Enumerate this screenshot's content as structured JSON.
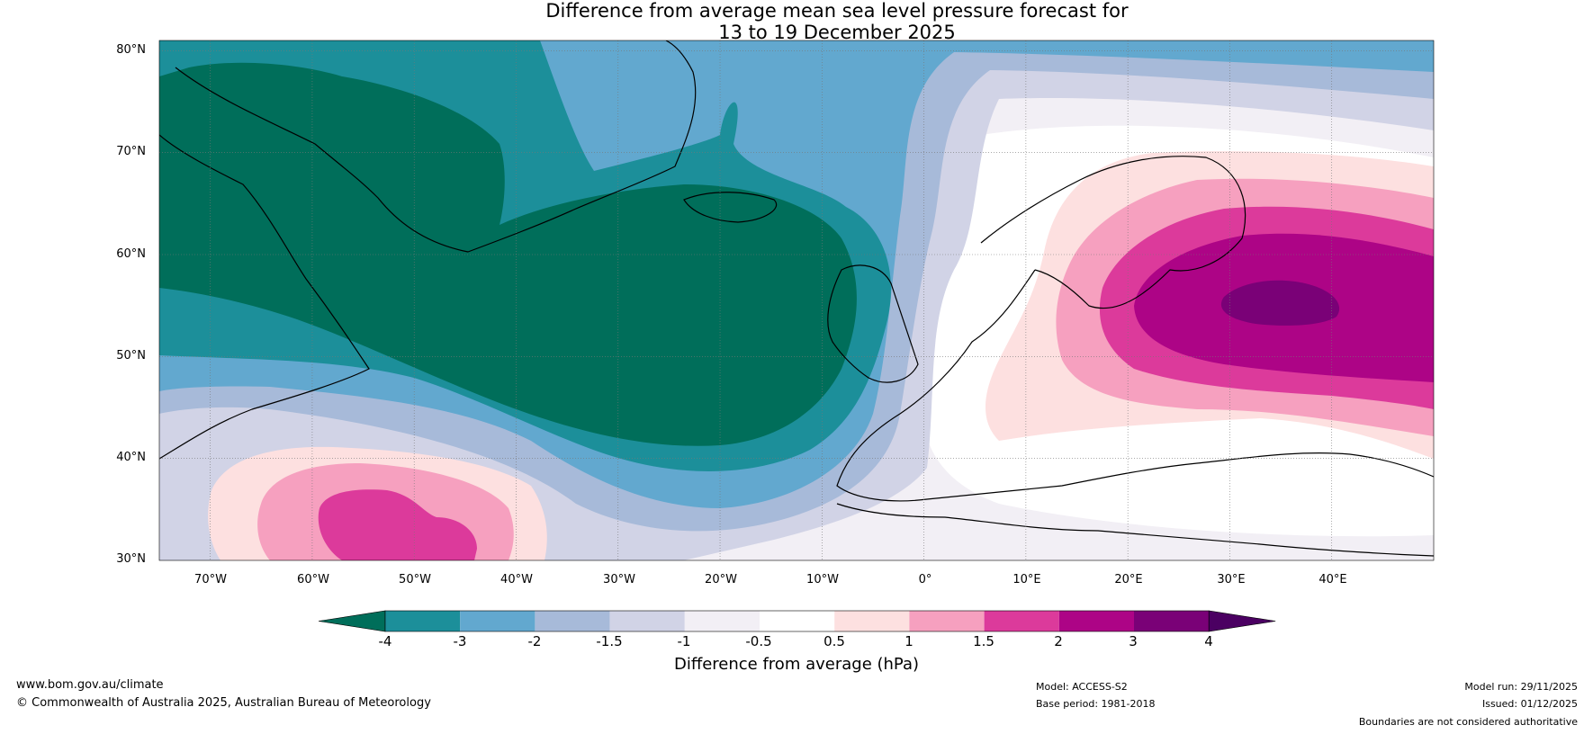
{
  "title": {
    "line1": "Difference from average mean sea level pressure forecast for",
    "line2": "13 to 19 December 2025"
  },
  "map": {
    "latitude_labels": [
      "80°N",
      "70°N",
      "60°N",
      "50°N",
      "40°N",
      "30°N"
    ],
    "longitude_labels": [
      "70°W",
      "60°W",
      "50°W",
      "40°W",
      "30°W",
      "20°W",
      "10°W",
      "0°",
      "10°E",
      "20°E",
      "30°E",
      "40°E"
    ],
    "extent": {
      "lon": [
        -75,
        50
      ],
      "lat": [
        30,
        81
      ]
    }
  },
  "colorbar": {
    "ticks": [
      "-4",
      "-3",
      "-2",
      "-1.5",
      "-1",
      "-0.5",
      "0.5",
      "1",
      "1.5",
      "2",
      "3",
      "4"
    ],
    "label": "Difference from average (hPa)",
    "colors": [
      "#006e5a",
      "#1c8f9a",
      "#62a8cf",
      "#a7bad9",
      "#d1d3e6",
      "#f2eff5",
      "#ffffff",
      "#fde0e0",
      "#f6a0bf",
      "#dc3a9b",
      "#ad0486",
      "#7a0177",
      "#4b0062"
    ]
  },
  "footer": {
    "website": "www.bom.gov.au/climate",
    "copyright": "© Commonwealth of Australia 2025, Australian Bureau of Meteorology",
    "model": "Model: ACCESS-S2",
    "base_period": "Base period: 1981-2018",
    "model_run": "Model run: 29/11/2025",
    "issued": "Issued: 01/12/2025",
    "disclaimer": "Boundaries are not considered authoritative"
  }
}
